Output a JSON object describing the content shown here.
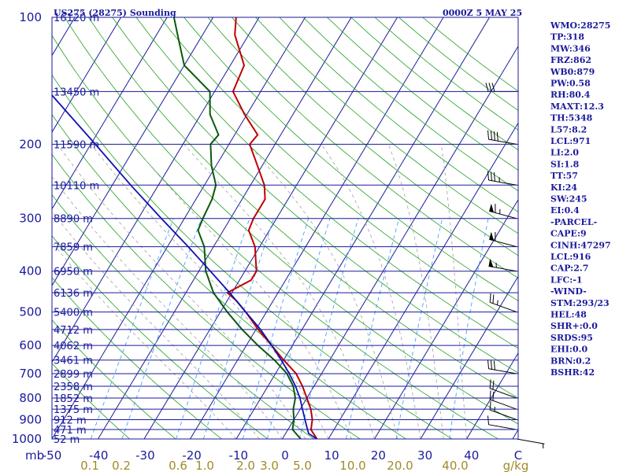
{
  "header": {
    "title": "US275 (28275) Sounding",
    "time": "0000Z  5 MAY 25"
  },
  "axes": {
    "pressure_ticks": [
      "100",
      "200",
      "300",
      "400",
      "500",
      "600",
      "700",
      "800",
      "900",
      "1000"
    ],
    "pressure_unit": "mb",
    "temp_ticks": [
      "-50",
      "-40",
      "-30",
      "-20",
      "-10",
      "0",
      "10",
      "20",
      "30",
      "40",
      "C"
    ],
    "mixing_ticks": [
      "0.1",
      "0.2",
      "0.6",
      "1.0",
      "2.0",
      "3.0",
      "5.0",
      "10.0",
      "20.0",
      "40.0",
      "g/kg"
    ],
    "height_labels": [
      {
        "p": 100,
        "label": "16120 m"
      },
      {
        "p": 150,
        "label": "13450 m"
      },
      {
        "p": 200,
        "label": "11590 m"
      },
      {
        "p": 250,
        "label": "10110 m"
      },
      {
        "p": 300,
        "label": "8890 m"
      },
      {
        "p": 350,
        "label": "7859 m"
      },
      {
        "p": 400,
        "label": "6950 m"
      },
      {
        "p": 450,
        "label": "6136 m"
      },
      {
        "p": 500,
        "label": "5400 m"
      },
      {
        "p": 550,
        "label": "4712 m"
      },
      {
        "p": 600,
        "label": "4062 m"
      },
      {
        "p": 650,
        "label": "3461 m"
      },
      {
        "p": 700,
        "label": "2899 m"
      },
      {
        "p": 750,
        "label": "2358 m"
      },
      {
        "p": 800,
        "label": "1852 m"
      },
      {
        "p": 850,
        "label": "1375 m"
      },
      {
        "p": 900,
        "label": "912 m"
      },
      {
        "p": 950,
        "label": "471 m"
      },
      {
        "p": 1000,
        "label": "52 m"
      }
    ]
  },
  "indices": [
    "WMO:28275",
    "TP:318",
    "MW:346",
    "FRZ:862",
    "WB0:879",
    "PW:0.58",
    "RH:80.4",
    "MAXT:12.3",
    "TH:5348",
    "L57:8.2",
    "LCL:971",
    "LI:2.0",
    "SI:1.8",
    "TT:57",
    "KI:24",
    "SW:245",
    "EI:0.4",
    "-PARCEL-",
    "CAPE:9",
    "CINH:47297",
    "LCL:916",
    "CAP:2.7",
    "LFC:-1",
    "-WIND-",
    "STM:293/23",
    "HEL:48",
    "SHR+:0.0",
    "SRDS:95",
    "EHI:0.0",
    "BRN:0.2",
    "BSHR:42"
  ],
  "colors": {
    "isobar": "#1a1a9c",
    "isotherm": "#1a1a9c",
    "dry_adiabat": "#22a022",
    "moist_adiabat": "#a0a0a0",
    "mixing_ratio": "#4aa0ff",
    "temperature": "#c00000",
    "dewpoint": "#0a5a0a",
    "parcel": "#1010b0",
    "text": "#1a1a9c",
    "mixing_text": "#a08a2a"
  },
  "chart_data": {
    "type": "line",
    "title": "US275 (28275) Sounding",
    "x_unit": "C",
    "y_unit": "mb",
    "y_scale": "log",
    "xlim": [
      -50,
      50
    ],
    "ylim": [
      1000,
      100
    ],
    "series": [
      {
        "name": "temperature",
        "points": [
          {
            "p": 1010,
            "t": 7.0
          },
          {
            "p": 1000,
            "t": 7.5
          },
          {
            "p": 950,
            "t": 5.0
          },
          {
            "p": 900,
            "t": 4.0
          },
          {
            "p": 850,
            "t": 2.3
          },
          {
            "p": 800,
            "t": 0.0
          },
          {
            "p": 750,
            "t": -2.5
          },
          {
            "p": 700,
            "t": -5.5
          },
          {
            "p": 650,
            "t": -10.0
          },
          {
            "p": 600,
            "t": -14.5
          },
          {
            "p": 550,
            "t": -19.5
          },
          {
            "p": 500,
            "t": -24.5
          },
          {
            "p": 470,
            "t": -28.0
          },
          {
            "p": 450,
            "t": -31.0
          },
          {
            "p": 420,
            "t": -27.5
          },
          {
            "p": 400,
            "t": -27.5
          },
          {
            "p": 350,
            "t": -31.0
          },
          {
            "p": 320,
            "t": -34.5
          },
          {
            "p": 300,
            "t": -35.0
          },
          {
            "p": 270,
            "t": -35.0
          },
          {
            "p": 250,
            "t": -37.0
          },
          {
            "p": 225,
            "t": -41.0
          },
          {
            "p": 200,
            "t": -45.5
          },
          {
            "p": 190,
            "t": -45.0
          },
          {
            "p": 170,
            "t": -50.5
          },
          {
            "p": 150,
            "t": -56.0
          },
          {
            "p": 130,
            "t": -57.0
          },
          {
            "p": 110,
            "t": -63.0
          },
          {
            "p": 100,
            "t": -65.0
          }
        ]
      },
      {
        "name": "dewpoint",
        "points": [
          {
            "p": 1000,
            "t": 4.0
          },
          {
            "p": 950,
            "t": 1.0
          },
          {
            "p": 900,
            "t": 0.0
          },
          {
            "p": 850,
            "t": -1.5
          },
          {
            "p": 800,
            "t": -2.5
          },
          {
            "p": 750,
            "t": -4.5
          },
          {
            "p": 700,
            "t": -7.5
          },
          {
            "p": 650,
            "t": -12.0
          },
          {
            "p": 600,
            "t": -17.5
          },
          {
            "p": 550,
            "t": -23.0
          },
          {
            "p": 500,
            "t": -28.5
          },
          {
            "p": 450,
            "t": -34.0
          },
          {
            "p": 400,
            "t": -38.5
          },
          {
            "p": 350,
            "t": -42.0
          },
          {
            "p": 320,
            "t": -45.5
          },
          {
            "p": 300,
            "t": -46.0
          },
          {
            "p": 270,
            "t": -46.5
          },
          {
            "p": 250,
            "t": -47.5
          },
          {
            "p": 225,
            "t": -51.0
          },
          {
            "p": 200,
            "t": -54.0
          },
          {
            "p": 190,
            "t": -53.5
          },
          {
            "p": 170,
            "t": -58.0
          },
          {
            "p": 150,
            "t": -61.0
          },
          {
            "p": 130,
            "t": -70.0
          },
          {
            "p": 115,
            "t": -74.0
          },
          {
            "p": 100,
            "t": -78.5
          }
        ]
      },
      {
        "name": "parcel",
        "points": [
          {
            "p": 1000,
            "t": 7.5
          },
          {
            "p": 971,
            "t": 5.0
          },
          {
            "p": 916,
            "t": 3.0
          },
          {
            "p": 850,
            "t": 0.5
          },
          {
            "p": 800,
            "t": -1.5
          },
          {
            "p": 750,
            "t": -4.0
          },
          {
            "p": 700,
            "t": -7.0
          },
          {
            "p": 650,
            "t": -10.5
          },
          {
            "p": 600,
            "t": -14.5
          },
          {
            "p": 550,
            "t": -19.0
          },
          {
            "p": 500,
            "t": -24.5
          },
          {
            "p": 450,
            "t": -30.5
          },
          {
            "p": 400,
            "t": -37.5
          },
          {
            "p": 350,
            "t": -45.5
          },
          {
            "p": 300,
            "t": -55.0
          },
          {
            "p": 250,
            "t": -66.0
          },
          {
            "p": 200,
            "t": -79.0
          },
          {
            "p": 150,
            "t": -96.0
          },
          {
            "p": 120,
            "t": -110.0
          }
        ]
      }
    ],
    "winds": [
      {
        "p": 1000,
        "dir": 100,
        "spd": 5
      },
      {
        "p": 950,
        "dir": 280,
        "spd": 10
      },
      {
        "p": 900,
        "dir": 290,
        "spd": 15
      },
      {
        "p": 850,
        "dir": 290,
        "spd": 20
      },
      {
        "p": 800,
        "dir": 290,
        "spd": 20
      },
      {
        "p": 700,
        "dir": 280,
        "spd": 30
      },
      {
        "p": 500,
        "dir": 290,
        "spd": 25
      },
      {
        "p": 400,
        "dir": 280,
        "spd": 55
      },
      {
        "p": 350,
        "dir": 285,
        "spd": 60
      },
      {
        "p": 300,
        "dir": 285,
        "spd": 65
      },
      {
        "p": 250,
        "dir": 280,
        "spd": 35
      },
      {
        "p": 200,
        "dir": 280,
        "spd": 40
      },
      {
        "p": 150,
        "dir": 270,
        "spd": 30
      }
    ]
  }
}
